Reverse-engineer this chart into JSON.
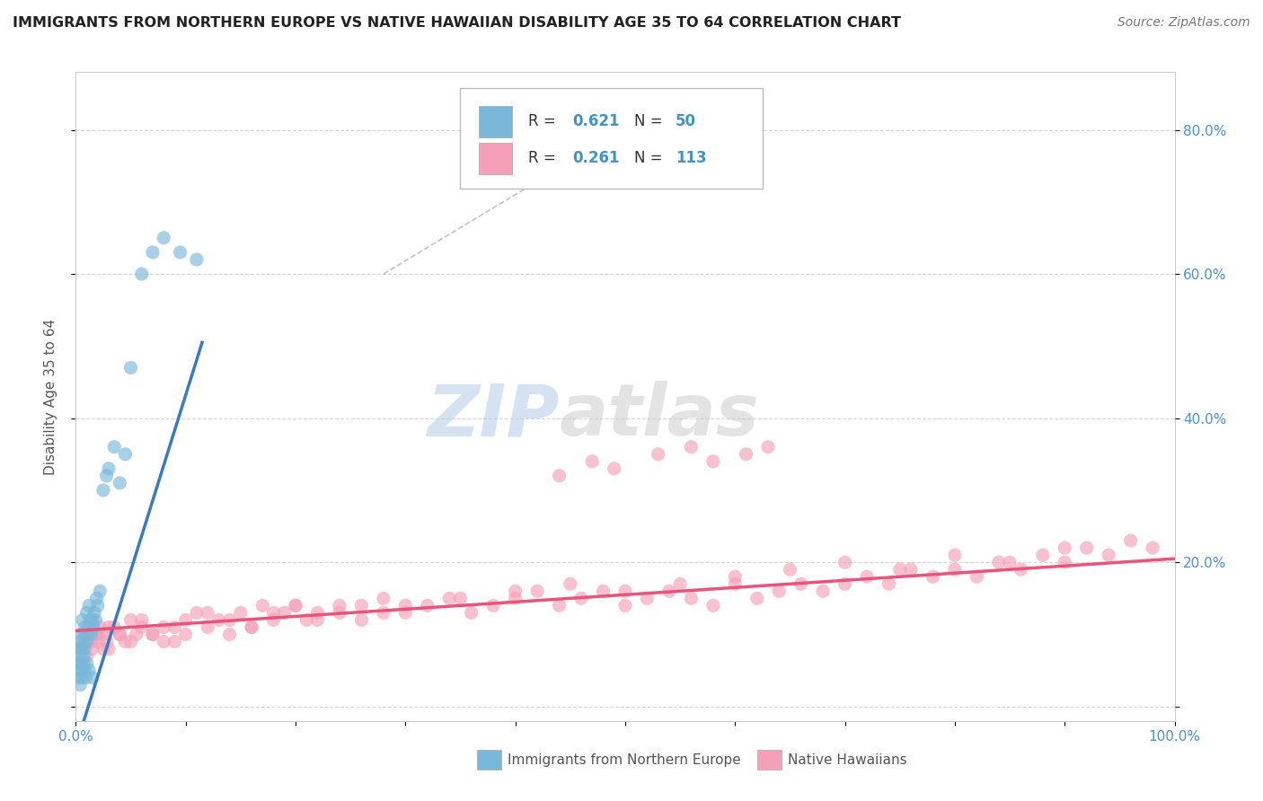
{
  "title": "IMMIGRANTS FROM NORTHERN EUROPE VS NATIVE HAWAIIAN DISABILITY AGE 35 TO 64 CORRELATION CHART",
  "source_text": "Source: ZipAtlas.com",
  "ylabel": "Disability Age 35 to 64",
  "xlim": [
    0.0,
    1.0
  ],
  "ylim": [
    -0.02,
    0.88
  ],
  "x_tick_positions": [
    0.0,
    0.1,
    0.2,
    0.3,
    0.4,
    0.5,
    0.6,
    0.7,
    0.8,
    0.9,
    1.0
  ],
  "x_tick_labels": [
    "0.0%",
    "",
    "",
    "",
    "",
    "",
    "",
    "",
    "",
    "",
    "100.0%"
  ],
  "y_tick_positions": [
    0.0,
    0.2,
    0.4,
    0.6,
    0.8
  ],
  "y_tick_labels": [
    "",
    "20.0%",
    "40.0%",
    "60.0%",
    "80.0%"
  ],
  "color_blue": "#7ab8d9",
  "color_pink": "#f4a0b8",
  "color_blue_line": "#3a7bbf",
  "color_pink_line": "#e8547a",
  "color_blue_text": "#4292c6",
  "color_dash": "#aaaaaa",
  "watermark_zip": "ZIP",
  "watermark_atlas": "atlas",
  "background_color": "#ffffff",
  "grid_color": "#cccccc",
  "blue_x": [
    0.002,
    0.003,
    0.003,
    0.004,
    0.004,
    0.005,
    0.005,
    0.006,
    0.006,
    0.007,
    0.007,
    0.008,
    0.008,
    0.009,
    0.01,
    0.01,
    0.011,
    0.012,
    0.012,
    0.013,
    0.014,
    0.015,
    0.016,
    0.017,
    0.018,
    0.019,
    0.02,
    0.022,
    0.025,
    0.028,
    0.03,
    0.035,
    0.04,
    0.045,
    0.05,
    0.06,
    0.07,
    0.08,
    0.095,
    0.11,
    0.003,
    0.004,
    0.005,
    0.006,
    0.007,
    0.008,
    0.009,
    0.01,
    0.012,
    0.015
  ],
  "blue_y": [
    0.06,
    0.05,
    0.08,
    0.07,
    0.09,
    0.06,
    0.1,
    0.08,
    0.12,
    0.07,
    0.09,
    0.08,
    0.11,
    0.1,
    0.09,
    0.13,
    0.11,
    0.1,
    0.14,
    0.12,
    0.1,
    0.12,
    0.11,
    0.13,
    0.12,
    0.15,
    0.14,
    0.16,
    0.3,
    0.32,
    0.33,
    0.36,
    0.31,
    0.35,
    0.47,
    0.6,
    0.63,
    0.65,
    0.63,
    0.62,
    0.04,
    0.03,
    0.05,
    0.04,
    0.06,
    0.05,
    0.04,
    0.06,
    0.05,
    0.04
  ],
  "pink_x": [
    0.008,
    0.01,
    0.012,
    0.015,
    0.018,
    0.02,
    0.022,
    0.025,
    0.028,
    0.03,
    0.035,
    0.04,
    0.045,
    0.05,
    0.055,
    0.06,
    0.07,
    0.08,
    0.09,
    0.1,
    0.11,
    0.12,
    0.13,
    0.14,
    0.15,
    0.16,
    0.17,
    0.18,
    0.19,
    0.2,
    0.21,
    0.22,
    0.24,
    0.26,
    0.28,
    0.3,
    0.32,
    0.34,
    0.36,
    0.38,
    0.4,
    0.42,
    0.44,
    0.46,
    0.48,
    0.5,
    0.52,
    0.54,
    0.56,
    0.58,
    0.6,
    0.62,
    0.64,
    0.66,
    0.68,
    0.7,
    0.72,
    0.74,
    0.76,
    0.78,
    0.8,
    0.82,
    0.84,
    0.86,
    0.88,
    0.9,
    0.92,
    0.94,
    0.96,
    0.98,
    0.005,
    0.01,
    0.015,
    0.02,
    0.025,
    0.03,
    0.04,
    0.05,
    0.06,
    0.07,
    0.08,
    0.09,
    0.1,
    0.12,
    0.14,
    0.16,
    0.18,
    0.2,
    0.22,
    0.24,
    0.26,
    0.28,
    0.3,
    0.35,
    0.4,
    0.45,
    0.5,
    0.55,
    0.6,
    0.65,
    0.7,
    0.75,
    0.8,
    0.85,
    0.9,
    0.61,
    0.63,
    0.58,
    0.56,
    0.53,
    0.49,
    0.47,
    0.44
  ],
  "pink_y": [
    0.1,
    0.09,
    0.11,
    0.08,
    0.1,
    0.09,
    0.11,
    0.1,
    0.09,
    0.08,
    0.11,
    0.1,
    0.09,
    0.12,
    0.1,
    0.11,
    0.1,
    0.09,
    0.11,
    0.12,
    0.13,
    0.11,
    0.12,
    0.1,
    0.13,
    0.11,
    0.14,
    0.12,
    0.13,
    0.14,
    0.12,
    0.13,
    0.14,
    0.12,
    0.15,
    0.13,
    0.14,
    0.15,
    0.13,
    0.14,
    0.15,
    0.16,
    0.14,
    0.15,
    0.16,
    0.14,
    0.15,
    0.16,
    0.15,
    0.14,
    0.17,
    0.15,
    0.16,
    0.17,
    0.16,
    0.17,
    0.18,
    0.17,
    0.19,
    0.18,
    0.19,
    0.18,
    0.2,
    0.19,
    0.21,
    0.2,
    0.22,
    0.21,
    0.23,
    0.22,
    0.08,
    0.07,
    0.09,
    0.1,
    0.08,
    0.11,
    0.1,
    0.09,
    0.12,
    0.1,
    0.11,
    0.09,
    0.1,
    0.13,
    0.12,
    0.11,
    0.13,
    0.14,
    0.12,
    0.13,
    0.14,
    0.13,
    0.14,
    0.15,
    0.16,
    0.17,
    0.16,
    0.17,
    0.18,
    0.19,
    0.2,
    0.19,
    0.21,
    0.2,
    0.22,
    0.35,
    0.36,
    0.34,
    0.36,
    0.35,
    0.33,
    0.34,
    0.32
  ],
  "blue_line_x": [
    -0.005,
    0.115
  ],
  "blue_line_y": [
    -0.08,
    0.505
  ],
  "pink_line_x": [
    0.0,
    1.0
  ],
  "pink_line_y": [
    0.105,
    0.205
  ],
  "dash_line_x": [
    0.28,
    0.52
  ],
  "dash_line_y": [
    0.6,
    0.82
  ]
}
